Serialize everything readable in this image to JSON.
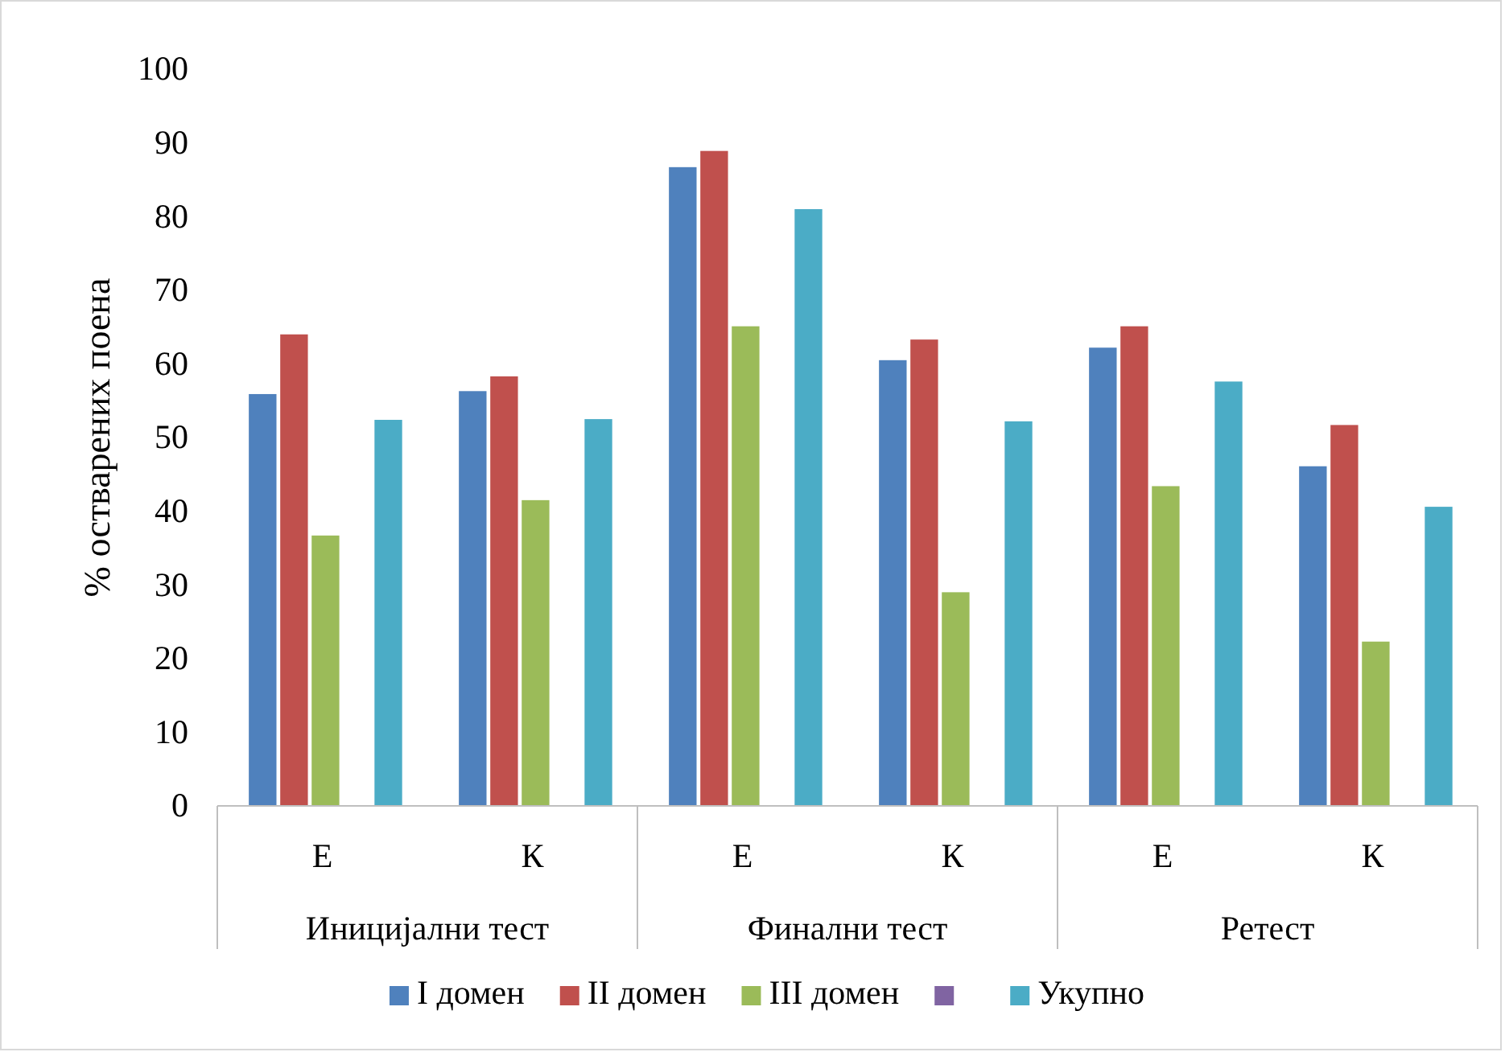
{
  "chart_data": {
    "type": "bar",
    "ylabel": "% остварених поена",
    "categories": [
      "Е",
      "К",
      "Е",
      "К",
      "Е",
      "К"
    ],
    "annotations": [
      "Иницијални тест",
      "Финални тест",
      "Ретест"
    ],
    "series": [
      {
        "name": "I домен",
        "color": "#4f81bd",
        "values": [
          55.9,
          56.3,
          86.7,
          60.5,
          62.2,
          46.1
        ]
      },
      {
        "name": "II домен",
        "color": "#c0504d",
        "values": [
          64.0,
          58.3,
          88.9,
          63.3,
          65.1,
          51.7
        ]
      },
      {
        "name": "III домен",
        "color": "#9bbb59",
        "values": [
          36.7,
          41.5,
          65.1,
          29.0,
          43.4,
          22.3
        ]
      },
      {
        "color": "#8064a2",
        "values": [
          null,
          null,
          null,
          null,
          null,
          null
        ]
      },
      {
        "name": "Укупно",
        "color": "#4bacc6",
        "values": [
          52.4,
          52.5,
          81.0,
          52.2,
          57.6,
          40.6
        ]
      }
    ],
    "ylim": [
      0,
      100
    ],
    "yticks": [
      0,
      10,
      20,
      30,
      40,
      50,
      60,
      70,
      80,
      90,
      100
    ],
    "legend": "bottom"
  }
}
